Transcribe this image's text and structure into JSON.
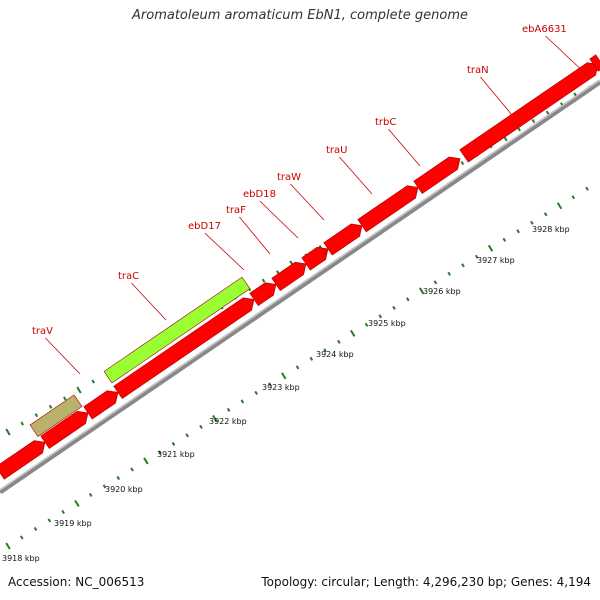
{
  "title": "Aromatoleum aromaticum EbN1, complete genome",
  "footer": {
    "accession": "Accession: NC_006513",
    "topology": "Topology: circular; Length: 4,296,230 bp; Genes: 4,194"
  },
  "colors": {
    "cds": "#ff0000",
    "cds_highlight": "#99ff33",
    "cds_other": "#b8b26a",
    "backbone": "#888888",
    "tick": "#2a7a2a",
    "label": "#cc0000"
  },
  "gene_labels": [
    "traV",
    "traC",
    "ebD17",
    "traF",
    "ebD18",
    "traW",
    "traU",
    "trbC",
    "traN",
    "ebA6631"
  ],
  "scale_labels": [
    "3918 kbp",
    "3919 kbp",
    "3920 kbp",
    "3921 kbp",
    "3922 kbp",
    "3923 kbp",
    "3924 kbp",
    "3925 kbp",
    "3926 kbp",
    "3927 kbp",
    "3928 kbp"
  ]
}
